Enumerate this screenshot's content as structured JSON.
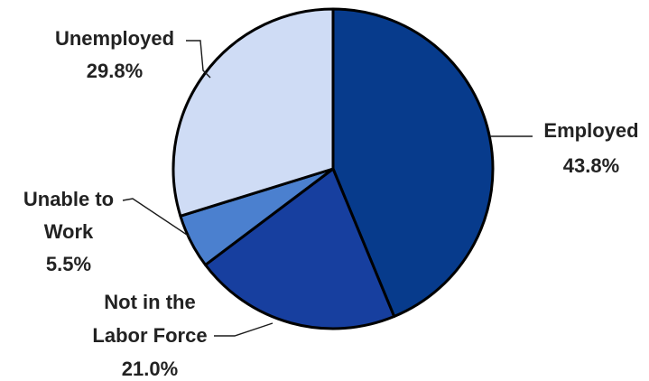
{
  "chart_data": {
    "type": "pie",
    "title": "",
    "slices": [
      {
        "label": "Employed",
        "label_lines": [
          "Employed"
        ],
        "value": 43.8,
        "value_label": "43.8%",
        "color": "#073b8c"
      },
      {
        "label": "Not in the Labor Force",
        "label_lines": [
          "Not in the",
          "Labor Force"
        ],
        "value": 21.0,
        "value_label": "21.0%",
        "color": "#173f9f"
      },
      {
        "label": "Unable to Work",
        "label_lines": [
          "Unable to",
          "Work"
        ],
        "value": 5.5,
        "value_label": "5.5%",
        "color": "#4b80cf"
      },
      {
        "label": "Unemployed",
        "label_lines": [
          "Unemployed"
        ],
        "value": 29.8,
        "value_label": "29.8%",
        "color": "#cfdcf5"
      }
    ],
    "start_angle": "12 o'clock",
    "direction": "clockwise",
    "legend": "none",
    "labels": "outside with leader lines"
  }
}
